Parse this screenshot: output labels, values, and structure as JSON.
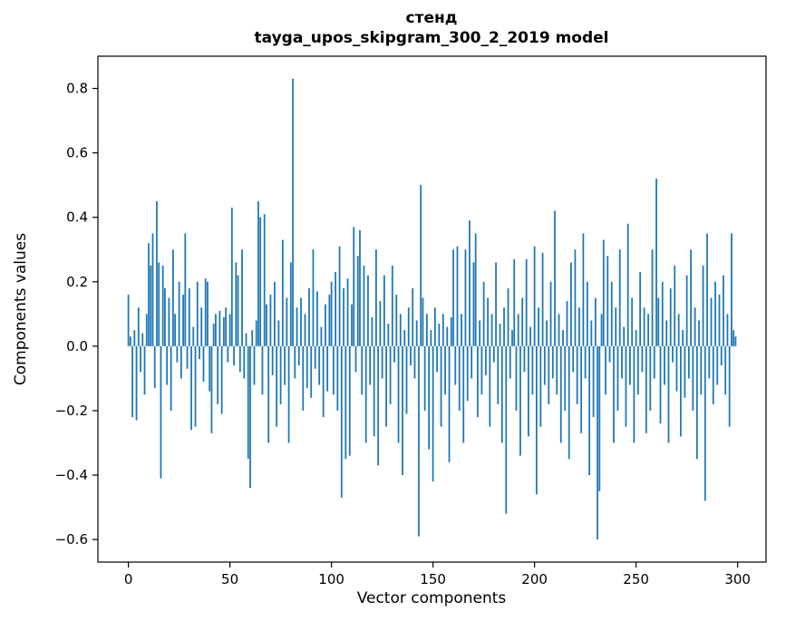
{
  "figure": {
    "title_line1": "стенд",
    "title_line2": "tayga_upos_skipgram_300_2_2019 model",
    "xlabel": "Vector components",
    "ylabel": "Components values"
  },
  "chart_data": {
    "type": "bar",
    "title": "стенд\ntayga_upos_skipgram_300_2_2019 model",
    "xlabel": "Vector components",
    "ylabel": "Components values",
    "bar_color": "#1f77b4",
    "background_color": "#ffffff",
    "grid": false,
    "legend_position": "none",
    "xlim": [
      -15,
      314
    ],
    "ylim": [
      -0.67,
      0.9
    ],
    "xticks": [
      0,
      50,
      100,
      150,
      200,
      250,
      300
    ],
    "yticks": [
      -0.6,
      -0.4,
      -0.2,
      0.0,
      0.2,
      0.4,
      0.6,
      0.8
    ],
    "x_start": 0,
    "bar_width_units": 0.8,
    "values": [
      0.16,
      0.03,
      -0.22,
      0.05,
      -0.23,
      0.12,
      -0.08,
      0.04,
      -0.15,
      0.1,
      0.32,
      0.25,
      0.35,
      -0.13,
      0.45,
      0.26,
      -0.41,
      0.25,
      0.18,
      -0.12,
      0.15,
      -0.2,
      0.3,
      0.1,
      -0.05,
      0.2,
      -0.1,
      0.16,
      0.35,
      -0.07,
      0.18,
      -0.26,
      0.06,
      -0.25,
      0.2,
      -0.04,
      0.12,
      -0.11,
      0.21,
      0.2,
      -0.14,
      -0.27,
      0.07,
      0.1,
      -0.18,
      0.11,
      -0.21,
      0.09,
      0.12,
      -0.05,
      0.1,
      0.43,
      -0.06,
      0.26,
      0.22,
      -0.08,
      0.3,
      -0.1,
      0.04,
      -0.35,
      -0.44,
      0.05,
      -0.12,
      0.08,
      0.45,
      0.4,
      -0.15,
      0.41,
      0.13,
      -0.3,
      0.16,
      -0.09,
      0.2,
      -0.25,
      0.08,
      -0.18,
      0.33,
      -0.12,
      0.15,
      -0.3,
      0.26,
      0.83,
      -0.1,
      0.12,
      -0.06,
      0.15,
      -0.2,
      0.1,
      -0.13,
      0.18,
      -0.16,
      0.3,
      -0.07,
      0.17,
      -0.12,
      0.06,
      -0.22,
      0.13,
      -0.14,
      0.16,
      0.2,
      -0.15,
      0.23,
      -0.2,
      0.31,
      -0.47,
      0.18,
      -0.35,
      0.21,
      -0.34,
      0.13,
      0.37,
      -0.08,
      0.28,
      0.36,
      -0.15,
      0.25,
      -0.3,
      0.22,
      -0.12,
      0.09,
      -0.28,
      0.3,
      -0.37,
      0.14,
      -0.1,
      0.22,
      -0.25,
      0.07,
      -0.18,
      0.25,
      -0.05,
      0.16,
      -0.3,
      0.1,
      -0.4,
      0.05,
      -0.21,
      0.12,
      -0.06,
      0.18,
      -0.1,
      0.08,
      -0.59,
      0.5,
      0.15,
      -0.2,
      0.1,
      -0.32,
      0.05,
      -0.42,
      0.12,
      -0.08,
      0.07,
      -0.25,
      0.1,
      -0.15,
      0.06,
      -0.36,
      0.09,
      0.3,
      -0.12,
      0.31,
      -0.2,
      0.1,
      -0.3,
      0.3,
      -0.17,
      0.39,
      -0.1,
      0.26,
      0.35,
      -0.22,
      0.08,
      -0.15,
      0.2,
      -0.09,
      0.15,
      -0.25,
      0.1,
      -0.05,
      0.26,
      -0.18,
      0.07,
      -0.3,
      0.12,
      -0.52,
      0.18,
      -0.1,
      0.05,
      0.27,
      -0.2,
      0.1,
      -0.34,
      0.15,
      -0.08,
      0.27,
      -0.28,
      0.06,
      -0.15,
      0.31,
      -0.46,
      0.12,
      -0.25,
      0.29,
      -0.12,
      0.08,
      -0.18,
      0.2,
      -0.1,
      0.42,
      -0.15,
      0.1,
      -0.3,
      0.05,
      -0.2,
      0.14,
      -0.35,
      0.26,
      -0.08,
      0.3,
      -0.18,
      0.12,
      -0.27,
      0.35,
      -0.1,
      0.2,
      -0.4,
      0.08,
      -0.22,
      0.15,
      -0.6,
      -0.45,
      0.1,
      0.33,
      -0.15,
      0.28,
      -0.05,
      0.2,
      -0.3,
      0.12,
      -0.2,
      0.3,
      -0.1,
      0.06,
      -0.25,
      0.38,
      -0.12,
      0.15,
      -0.3,
      0.05,
      -0.15,
      0.23,
      -0.08,
      0.12,
      -0.27,
      0.1,
      -0.2,
      0.3,
      -0.1,
      0.52,
      0.15,
      -0.24,
      0.2,
      -0.12,
      0.08,
      -0.3,
      0.18,
      -0.05,
      0.25,
      -0.14,
      0.1,
      -0.28,
      0.05,
      -0.16,
      0.22,
      -0.1,
      0.3,
      -0.2,
      0.12,
      -0.35,
      0.08,
      -0.15,
      0.25,
      -0.48,
      0.35,
      -0.1,
      0.15,
      -0.18,
      0.2,
      -0.12,
      0.16,
      -0.06,
      0.22,
      -0.15,
      0.1,
      -0.25,
      0.35,
      0.05,
      0.03
    ]
  }
}
